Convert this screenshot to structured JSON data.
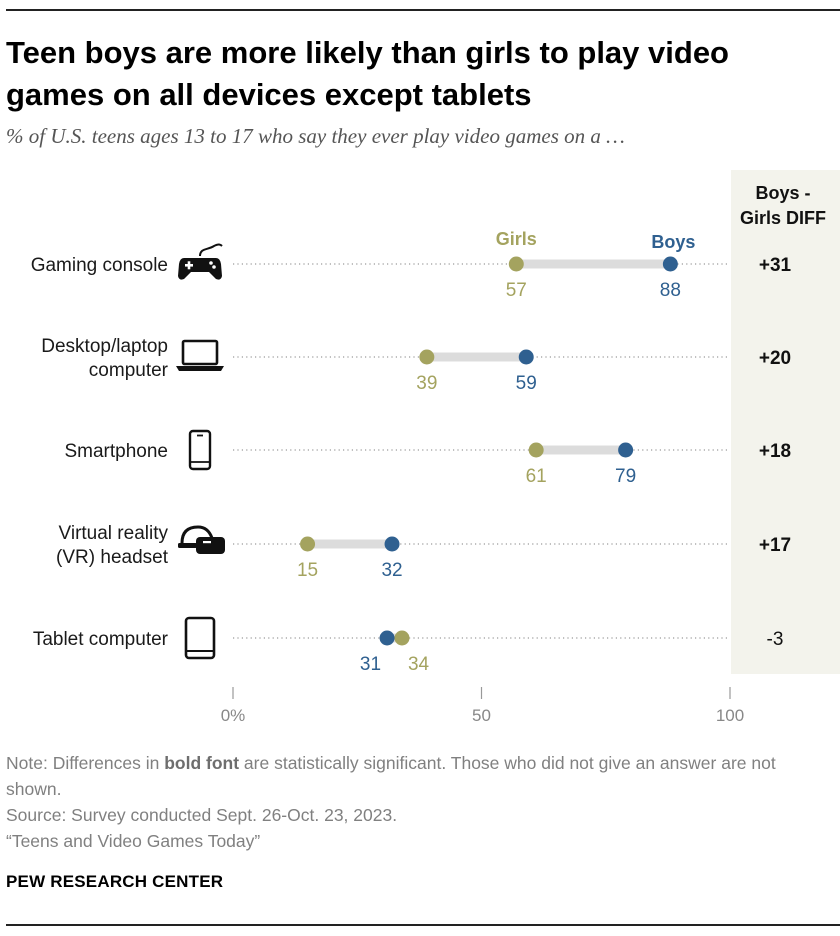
{
  "title": "Teen boys are more likely than girls to play video games on all devices except tablets",
  "subtitle": "% of U.S. teens ages 13 to 17 who say they ever play video games on a …",
  "chart_data": {
    "type": "dot",
    "series": [
      {
        "name": "Girls",
        "color": "#a4a35f"
      },
      {
        "name": "Boys",
        "color": "#2f6090"
      }
    ],
    "xlim": [
      0,
      100
    ],
    "x_ticks": [
      "0%",
      "50",
      "100"
    ],
    "diff_header": [
      "Boys -",
      "Girls DIFF"
    ],
    "rows": [
      {
        "label": [
          "Gaming console"
        ],
        "icon": "gamepad-icon",
        "girls": 57,
        "boys": 88,
        "diff": "+31",
        "significant": true
      },
      {
        "label": [
          "Desktop/laptop",
          "computer"
        ],
        "icon": "laptop-icon",
        "girls": 39,
        "boys": 59,
        "diff": "+20",
        "significant": true
      },
      {
        "label": [
          "Smartphone"
        ],
        "icon": "smartphone-icon",
        "girls": 61,
        "boys": 79,
        "diff": "+18",
        "significant": true
      },
      {
        "label": [
          "Virtual reality",
          "(VR) headset"
        ],
        "icon": "vr-headset-icon",
        "girls": 15,
        "boys": 32,
        "diff": "+17",
        "significant": true
      },
      {
        "label": [
          "Tablet computer"
        ],
        "icon": "tablet-icon",
        "girls": 34,
        "boys": 31,
        "diff": "-3",
        "significant": false
      }
    ]
  },
  "note": {
    "prefix": "Note: Differences in ",
    "bold": "bold font",
    "suffix": " are statistically significant. Those who did not give an answer are not shown."
  },
  "source": "Source: Survey conducted Sept. 26-Oct. 23, 2023.",
  "report": "“Teens and Video Games Today”",
  "org": "PEW RESEARCH CENTER"
}
